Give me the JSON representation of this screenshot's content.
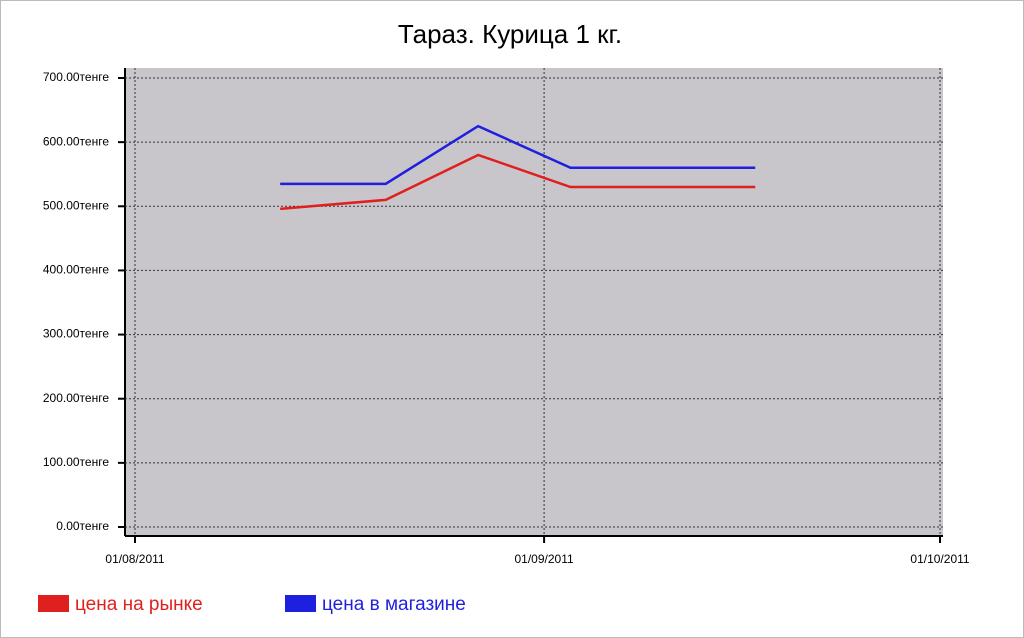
{
  "chart_data": {
    "type": "line",
    "title": "Тараз. Курица 1 кг.",
    "x": [
      "12/08/2011",
      "20/08/2011",
      "27/08/2011",
      "03/09/2011",
      "10/09/2011",
      "17/09/2011"
    ],
    "series": [
      {
        "name": "цена на рынке",
        "color": "#e0201e",
        "values": [
          496,
          510,
          580,
          530,
          530,
          530
        ]
      },
      {
        "name": "цена в магазине",
        "color": "#1f1fe0",
        "values": [
          535,
          535,
          625,
          560,
          560,
          560
        ]
      }
    ],
    "xlim": [
      "01/08/2011",
      "01/10/2011"
    ],
    "xticks": [
      "01/08/2011",
      "01/09/2011",
      "01/10/2011"
    ],
    "ylim": [
      0,
      700
    ],
    "yticks": [
      {
        "value": 0,
        "label": "0.00тенге"
      },
      {
        "value": 100,
        "label": "100.00тенге"
      },
      {
        "value": 200,
        "label": "200.00тенге"
      },
      {
        "value": 300,
        "label": "300.00тенге"
      },
      {
        "value": 400,
        "label": "400.00тенге"
      },
      {
        "value": 500,
        "label": "500.00тенге"
      },
      {
        "value": 600,
        "label": "600.00тенге"
      },
      {
        "value": 700,
        "label": "700.00тенге"
      }
    ],
    "grid": true
  }
}
